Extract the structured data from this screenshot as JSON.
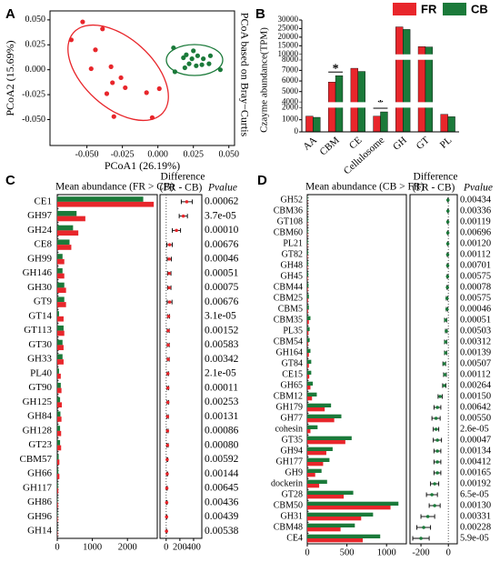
{
  "chart_data": [
    {
      "type": "scatter",
      "panel": "A",
      "title": "PCoA based on Bray−Curtis",
      "x_label": "PCoA1 (26.19%)",
      "y_label": "PCoA2 (15.69%)",
      "xlim": [
        -0.076,
        0.054
      ],
      "ylim": [
        -0.076,
        0.059
      ],
      "xticks": [
        {
          "value": -0.05,
          "label": "-0.050"
        },
        {
          "value": -0.025,
          "label": "-0.025"
        },
        {
          "value": 0,
          "label": "0.000"
        },
        {
          "value": 0.025,
          "label": "0.025"
        },
        {
          "value": 0.05,
          "label": "0.050"
        }
      ],
      "yticks": [
        {
          "value": -0.05,
          "label": "-0.050"
        },
        {
          "value": -0.025,
          "label": "-0.025"
        },
        {
          "value": 0,
          "label": "0.000"
        },
        {
          "value": 0.025,
          "label": "0.025"
        },
        {
          "value": 0.05,
          "label": "0.050"
        }
      ],
      "series": [
        {
          "color": "#e8262b",
          "x": [
            -0.053,
            -0.039,
            -0.061,
            -0.044,
            -0.033,
            -0.047,
            -0.032,
            -0.023,
            -0.036,
            -0.031,
            0.001,
            -0.008,
            -0.004,
            -0.026
          ],
          "y": [
            0.048,
            0.041,
            0.03,
            0.02,
            0.003,
            0.001,
            -0.013,
            -0.018,
            -0.024,
            -0.047,
            -0.019,
            -0.023,
            -0.048,
            -0.008
          ]
        },
        {
          "color": "#1b7a3a",
          "x": [
            0.011,
            0.018,
            0.02,
            0.024,
            0.028,
            0.032,
            0.037,
            0.022,
            0.027,
            0.031,
            0.036,
            0.025,
            0.012,
            0.044,
            0.019
          ],
          "y": [
            0.022,
            0.012,
            0.015,
            0.011,
            0.014,
            0.011,
            0.014,
            0.006,
            0.004,
            0.005,
            0.006,
            0.019,
            -0.002,
            0.0,
            0.002
          ]
        }
      ]
    },
    {
      "type": "bar",
      "panel": "B",
      "y_label": "Czayme abundance(TPM)",
      "categories": [
        "AA",
        "CBM",
        "CE",
        "Cellulosome",
        "GH",
        "GT",
        "PL"
      ],
      "series": [
        {
          "name": "FR",
          "color": "#e8262b",
          "values": [
            1300,
            5900,
            7200,
            1300,
            26000,
            14500,
            1450
          ]
        },
        {
          "name": "CB",
          "color": "#1b7a3a",
          "values": [
            1200,
            6500,
            6900,
            1650,
            24500,
            14300,
            1250
          ]
        }
      ],
      "significance": [
        null,
        "*",
        null,
        "*",
        null,
        null,
        null
      ],
      "ylim": [
        0,
        30000
      ],
      "axis_breaks": [
        [
          2000,
          4000
        ],
        [
          8000,
          10000
        ]
      ],
      "yticks": [
        0,
        1000,
        2000,
        4000,
        5000,
        6000,
        7000,
        8000,
        10000,
        15000,
        20000,
        25000,
        30000
      ],
      "legend": "top-right"
    },
    {
      "type": "extended_error_bar",
      "panel": "C",
      "title": "Mean abundance (FR > CB)",
      "diff_title": "Difference",
      "diff_subtitle": "(FR - CB)",
      "p_title": "Pvalue",
      "categories": [
        "CE1",
        "GH97",
        "GH24",
        "CE8",
        "GH99",
        "GH146",
        "GH30",
        "GT9",
        "GT14",
        "GT113",
        "GT30",
        "GH33",
        "PL40",
        "GT90",
        "GH125",
        "GH84",
        "GH128",
        "GT23",
        "CBM57",
        "GH66",
        "GH117",
        "GH86",
        "GH96",
        "GH14"
      ],
      "series": [
        {
          "color": "#1b7a3a",
          "values": [
            2450,
            550,
            450,
            350,
            150,
            150,
            200,
            200,
            50,
            180,
            150,
            150,
            50,
            100,
            80,
            90,
            80,
            80,
            40,
            30,
            20,
            10,
            10,
            5
          ]
        },
        {
          "color": "#e8262b",
          "values": [
            2750,
            800,
            600,
            400,
            200,
            200,
            250,
            250,
            180,
            200,
            180,
            180,
            100,
            120,
            130,
            120,
            110,
            110,
            60,
            60,
            30,
            20,
            15,
            10
          ]
        }
      ],
      "xlim": [
        0,
        2850
      ],
      "xticks": [
        0,
        1000,
        2000
      ],
      "diff": [
        300,
        250,
        150,
        50,
        45,
        45,
        45,
        50,
        35,
        30,
        30,
        30,
        25,
        25,
        25,
        20,
        20,
        20,
        15,
        15,
        10,
        8,
        6,
        5
      ],
      "diff_err": [
        80,
        60,
        60,
        40,
        30,
        25,
        25,
        35,
        15,
        15,
        15,
        15,
        10,
        12,
        12,
        12,
        10,
        10,
        8,
        8,
        6,
        5,
        4,
        4
      ],
      "diff_color": "#e8262b",
      "diff_xlim": [
        -90,
        520
      ],
      "diff_xticks": [
        0,
        200,
        400
      ],
      "p_values": [
        "0.00062",
        "3.7e-05",
        "0.00010",
        "0.00676",
        "0.00046",
        "0.00051",
        "0.00075",
        "0.00676",
        "3.1e-05",
        "0.00152",
        "0.00583",
        "0.00342",
        "2.1e-05",
        "0.00011",
        "0.00253",
        "0.00131",
        "0.00086",
        "0.00080",
        "0.00592",
        "0.00144",
        "0.00645",
        "0.00436",
        "0.00439",
        "0.00538"
      ]
    },
    {
      "type": "extended_error_bar",
      "panel": "D",
      "title": "Mean abundance (CB > FR)",
      "diff_title": "Difference",
      "diff_subtitle": "(FR - CB)",
      "p_title": "Pvalue",
      "categories": [
        "GH52",
        "CBM36",
        "GT108",
        "CBM60",
        "PL21",
        "GT82",
        "GH48",
        "GH45",
        "CBM44",
        "CBM25",
        "CBM5",
        "CBM35",
        "PL35",
        "CBM54",
        "GH164",
        "GT84",
        "CE15",
        "GH65",
        "CBM12",
        "GH179",
        "GH77",
        "cohesin",
        "GT35",
        "GH94",
        "GH177",
        "GH9",
        "dockerin",
        "GT28",
        "CBM50",
        "GH31",
        "CBM48",
        "CE4"
      ],
      "series": [
        {
          "color": "#1b7a3a",
          "values": [
            5,
            5,
            8,
            8,
            8,
            10,
            10,
            12,
            15,
            20,
            20,
            40,
            30,
            30,
            40,
            50,
            50,
            70,
            120,
            300,
            430,
            130,
            560,
            320,
            280,
            180,
            250,
            580,
            1150,
            830,
            600,
            920
          ]
        },
        {
          "color": "#e8262b",
          "values": [
            2,
            2,
            4,
            4,
            4,
            5,
            5,
            6,
            8,
            10,
            10,
            20,
            15,
            10,
            20,
            20,
            25,
            40,
            60,
            220,
            340,
            40,
            480,
            240,
            200,
            100,
            150,
            460,
            1050,
            680,
            420,
            700
          ]
        }
      ],
      "xlim": [
        0,
        1250
      ],
      "xticks": [
        0,
        500,
        1000
      ],
      "diff": [
        -3,
        -3,
        -4,
        -4,
        -4,
        -5,
        -5,
        -6,
        -7,
        -10,
        -10,
        -20,
        -15,
        -20,
        -20,
        -30,
        -25,
        -30,
        -60,
        -80,
        -90,
        -90,
        -80,
        -80,
        -80,
        -80,
        -100,
        -120,
        -100,
        -150,
        -180,
        -200
      ],
      "diff_err": [
        2,
        2,
        2,
        2,
        2,
        3,
        3,
        3,
        4,
        5,
        5,
        8,
        6,
        8,
        8,
        10,
        10,
        12,
        15,
        25,
        30,
        20,
        30,
        25,
        25,
        25,
        30,
        40,
        40,
        50,
        50,
        60
      ],
      "diff_color": "#1b7a3a",
      "diff_xlim": [
        -280,
        65
      ],
      "diff_xticks": [
        -200,
        0
      ],
      "p_values": [
        "0.00434",
        "0.00336",
        "0.00119",
        "0.00696",
        "0.00120",
        "0.00112",
        "0.00701",
        "0.00575",
        "0.00078",
        "0.00575",
        "0.00046",
        "0.00051",
        "0.00503",
        "0.00312",
        "0.00139",
        "0.00507",
        "0.00112",
        "0.00264",
        "0.00150",
        "0.00642",
        "0.00550",
        "2.6e-05",
        "0.00047",
        "0.00134",
        "0.00412",
        "0.00165",
        "0.00192",
        "6.5e-05",
        "0.00130",
        "0.00331",
        "0.00228",
        "5.9e-05"
      ]
    }
  ]
}
